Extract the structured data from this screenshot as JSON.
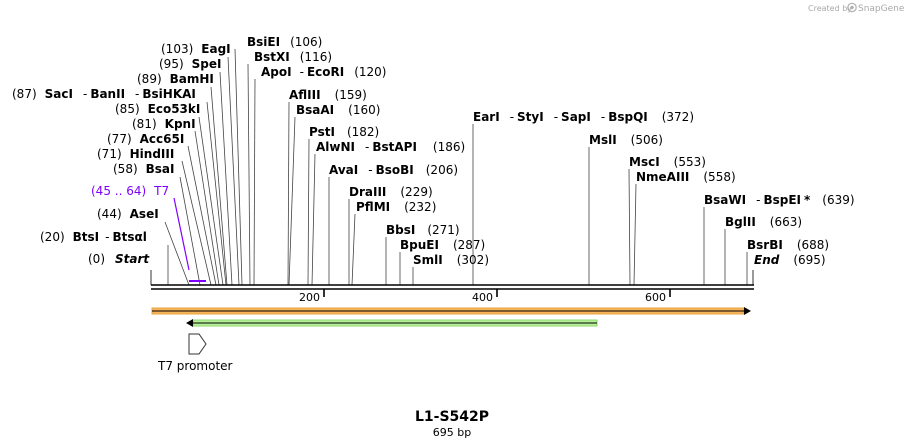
{
  "header": {
    "credit": "Created by",
    "brand": "SnapGene",
    "logo_icon": "snapgene-logo-icon"
  },
  "map": {
    "title": "L1-S542P",
    "length_label": "695 bp",
    "length": 695,
    "ticks": [
      {
        "value": 200,
        "label": "200"
      },
      {
        "value": 400,
        "label": "400"
      },
      {
        "value": 600,
        "label": "600"
      }
    ],
    "feature_label": "T7 promoter",
    "colors": {
      "backbone": "#000000",
      "marker": "#8000ff",
      "orange_fill": "#f7b45a",
      "orange_edge": "#f2b84d",
      "green_fill": "#b8f09a",
      "green_edge": "#8ed96d"
    }
  },
  "sites": [
    {
      "pos": "(0)",
      "name": "Start",
      "bp": 0,
      "italic": true
    },
    {
      "pos": "(20)",
      "name": "BtsI",
      "sep": "-",
      "name2": "Btsαl",
      "bp": 20
    },
    {
      "pos": "(44)",
      "name": "AseI",
      "bp": 44
    },
    {
      "pos": "(45 .. 64)",
      "name": "T7",
      "bp": 45,
      "purple": true
    },
    {
      "pos": "(58)",
      "name": "BsaI",
      "bp": 58
    },
    {
      "pos": "(71)",
      "name": "HindIII",
      "bp": 71
    },
    {
      "pos": "(77)",
      "name": "Acc65I",
      "bp": 77
    },
    {
      "pos": "(81)",
      "name": "KpnI",
      "bp": 81
    },
    {
      "pos": "(85)",
      "name": "Eco53kI",
      "bp": 85
    },
    {
      "pos": "(87)",
      "name": "SacI",
      "sep": "-",
      "name2": "BanII",
      "sep2": "-",
      "name3": "BsiHKAI",
      "bp": 87
    },
    {
      "pos": "(89)",
      "name": "BamHI",
      "bp": 89
    },
    {
      "pos": "(95)",
      "name": "SpeI",
      "bp": 95
    },
    {
      "pos": "(103)",
      "name": "EagI",
      "bp": 103
    },
    {
      "name": "BsiEI",
      "pos": "(106)",
      "bp": 106
    },
    {
      "name": "BstXI",
      "pos": "(116)",
      "bp": 116
    },
    {
      "name": "ApoI",
      "sep": "-",
      "name2": "EcoRI",
      "pos": "(120)",
      "bp": 120
    },
    {
      "name": "AflIII",
      "pos": "(159)",
      "bp": 159
    },
    {
      "name": "BsaAI",
      "pos": "(160)",
      "bp": 160
    },
    {
      "name": "PstI",
      "pos": "(182)",
      "bp": 182
    },
    {
      "name": "AlwNI",
      "sep": "-",
      "name2": "BstAPI",
      "pos": "(186)",
      "bp": 186
    },
    {
      "name": "AvaI",
      "sep": "-",
      "name2": "BsoBI",
      "pos": "(206)",
      "bp": 206
    },
    {
      "name": "DraIII",
      "pos": "(229)",
      "bp": 229
    },
    {
      "name": "PflMI",
      "pos": "(232)",
      "bp": 232
    },
    {
      "name": "BbsI",
      "pos": "(271)",
      "bp": 271
    },
    {
      "name": "BpuEI",
      "pos": "(287)",
      "bp": 287
    },
    {
      "name": "SmlI",
      "pos": "(302)",
      "bp": 302
    },
    {
      "name": "EarI",
      "sep": "-",
      "name2": "StyI",
      "sep2": "-",
      "name3": "SapI",
      "sep3": "-",
      "name4": "BspQI",
      "pos": "(372)",
      "bp": 372
    },
    {
      "name": "MslI",
      "pos": "(506)",
      "bp": 506
    },
    {
      "name": "MscI",
      "pos": "(553)",
      "bp": 553
    },
    {
      "name": "NmeAIII",
      "pos": "(558)",
      "bp": 558
    },
    {
      "name": "BsaWI",
      "sep": "-",
      "name2": "BspEI",
      "star": "*",
      "pos": "(639)",
      "bp": 639
    },
    {
      "name": "BglII",
      "pos": "(663)",
      "bp": 663
    },
    {
      "name": "BsrBI",
      "pos": "(688)",
      "bp": 688
    },
    {
      "name": "End",
      "pos": "(695)",
      "bp": 695,
      "italic": true
    }
  ]
}
